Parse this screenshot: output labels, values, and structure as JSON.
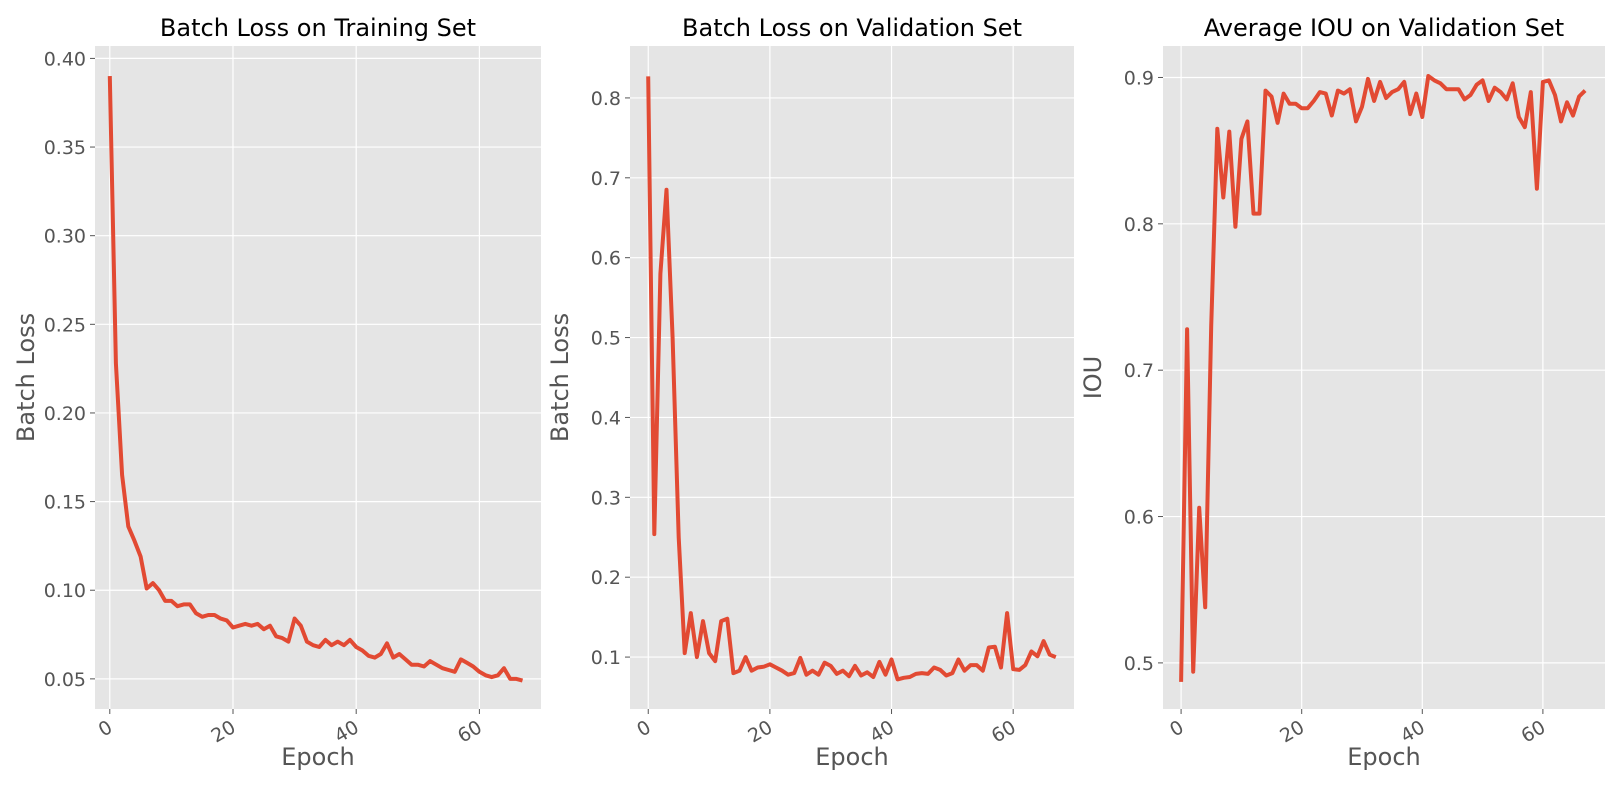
{
  "style": {
    "plot_background": "#e5e5e5",
    "grid_color": "#ffffff",
    "line_color": "#e24a33",
    "text_color": "#555555"
  },
  "chart_data": [
    {
      "type": "line",
      "title": "Batch Loss on Training Set",
      "xlabel": "Epoch",
      "ylabel": "Batch Loss",
      "xlim": [
        -2.4,
        70
      ],
      "ylim": [
        0.033,
        0.407
      ],
      "xticks": [
        0,
        20,
        40,
        60
      ],
      "yticks": [
        0.05,
        0.1,
        0.15,
        0.2,
        0.25,
        0.3,
        0.35,
        0.4
      ],
      "grid": true,
      "series": [
        {
          "x": [
            0,
            1,
            2,
            3,
            4,
            5,
            6,
            7,
            8,
            9,
            10,
            11,
            12,
            13,
            14,
            15,
            16,
            17,
            18,
            19,
            20,
            21,
            22,
            23,
            24,
            25,
            26,
            27,
            28,
            29,
            30,
            31,
            32,
            33,
            34,
            35,
            36,
            37,
            38,
            39,
            40,
            41,
            42,
            43,
            44,
            45,
            46,
            47,
            48,
            49,
            50,
            51,
            52,
            53,
            54,
            55,
            56,
            57,
            58,
            59,
            60,
            61,
            62,
            63,
            64,
            65,
            66,
            67
          ],
          "values": [
            0.39,
            0.228,
            0.165,
            0.136,
            0.128,
            0.119,
            0.101,
            0.104,
            0.1,
            0.094,
            0.094,
            0.091,
            0.092,
            0.092,
            0.087,
            0.085,
            0.086,
            0.086,
            0.084,
            0.083,
            0.079,
            0.08,
            0.081,
            0.08,
            0.081,
            0.078,
            0.08,
            0.074,
            0.073,
            0.071,
            0.084,
            0.08,
            0.071,
            0.069,
            0.068,
            0.072,
            0.069,
            0.071,
            0.069,
            0.072,
            0.068,
            0.066,
            0.063,
            0.062,
            0.064,
            0.07,
            0.062,
            0.064,
            0.061,
            0.058,
            0.058,
            0.057,
            0.06,
            0.058,
            0.056,
            0.055,
            0.054,
            0.061,
            0.059,
            0.057,
            0.054,
            0.052,
            0.051,
            0.052,
            0.056,
            0.05,
            0.05,
            0.049
          ]
        }
      ]
    },
    {
      "type": "line",
      "title": "Batch Loss on Validation Set",
      "xlabel": "Epoch",
      "ylabel": "Batch Loss",
      "xlim": [
        -3.0,
        70
      ],
      "ylim": [
        0.035,
        0.865
      ],
      "xticks": [
        0,
        20,
        40,
        60
      ],
      "yticks": [
        0.1,
        0.2,
        0.3,
        0.4,
        0.5,
        0.6,
        0.7,
        0.8
      ],
      "grid": true,
      "series": [
        {
          "x": [
            0,
            1,
            2,
            3,
            4,
            5,
            6,
            7,
            8,
            9,
            10,
            11,
            12,
            13,
            14,
            15,
            16,
            17,
            18,
            19,
            20,
            21,
            22,
            23,
            24,
            25,
            26,
            27,
            28,
            29,
            30,
            31,
            32,
            33,
            34,
            35,
            36,
            37,
            38,
            39,
            40,
            41,
            42,
            43,
            44,
            45,
            46,
            47,
            48,
            49,
            50,
            51,
            52,
            53,
            54,
            55,
            56,
            57,
            58,
            59,
            60,
            61,
            62,
            63,
            64,
            65,
            66,
            67
          ],
          "values": [
            0.827,
            0.254,
            0.58,
            0.685,
            0.5,
            0.25,
            0.105,
            0.155,
            0.1,
            0.145,
            0.105,
            0.095,
            0.145,
            0.148,
            0.08,
            0.083,
            0.1,
            0.083,
            0.087,
            0.088,
            0.091,
            0.087,
            0.083,
            0.078,
            0.08,
            0.099,
            0.078,
            0.083,
            0.078,
            0.093,
            0.089,
            0.079,
            0.083,
            0.076,
            0.089,
            0.077,
            0.081,
            0.075,
            0.094,
            0.078,
            0.097,
            0.072,
            0.074,
            0.075,
            0.079,
            0.08,
            0.079,
            0.087,
            0.084,
            0.077,
            0.08,
            0.097,
            0.083,
            0.09,
            0.09,
            0.083,
            0.112,
            0.113,
            0.087,
            0.155,
            0.085,
            0.084,
            0.09,
            0.107,
            0.101,
            0.12,
            0.103,
            0.1
          ]
        }
      ]
    },
    {
      "type": "line",
      "title": "Average IOU on Validation Set",
      "xlabel": "Epoch",
      "ylabel": "IOU",
      "xlim": [
        -3.0,
        70.3
      ],
      "ylim": [
        0.4685,
        0.9215
      ],
      "xticks": [
        0,
        20,
        40,
        60
      ],
      "yticks": [
        0.5,
        0.6,
        0.7,
        0.8,
        0.9
      ],
      "grid": true,
      "series": [
        {
          "x": [
            0,
            1,
            2,
            3,
            4,
            5,
            6,
            7,
            8,
            9,
            10,
            11,
            12,
            13,
            14,
            15,
            16,
            17,
            18,
            19,
            20,
            21,
            22,
            23,
            24,
            25,
            26,
            27,
            28,
            29,
            30,
            31,
            32,
            33,
            34,
            35,
            36,
            37,
            38,
            39,
            40,
            41,
            42,
            43,
            44,
            45,
            46,
            47,
            48,
            49,
            50,
            51,
            52,
            53,
            54,
            55,
            56,
            57,
            58,
            59,
            60,
            61,
            62,
            63,
            64,
            65,
            66,
            67
          ],
          "values": [
            0.487,
            0.728,
            0.494,
            0.606,
            0.538,
            0.73,
            0.865,
            0.818,
            0.863,
            0.798,
            0.858,
            0.87,
            0.807,
            0.807,
            0.891,
            0.887,
            0.869,
            0.889,
            0.882,
            0.882,
            0.879,
            0.879,
            0.884,
            0.89,
            0.889,
            0.874,
            0.891,
            0.889,
            0.892,
            0.87,
            0.88,
            0.899,
            0.884,
            0.897,
            0.886,
            0.89,
            0.892,
            0.897,
            0.875,
            0.889,
            0.873,
            0.901,
            0.898,
            0.896,
            0.892,
            0.892,
            0.892,
            0.885,
            0.888,
            0.895,
            0.898,
            0.884,
            0.893,
            0.89,
            0.885,
            0.896,
            0.873,
            0.866,
            0.89,
            0.824,
            0.897,
            0.898,
            0.888,
            0.87,
            0.883,
            0.874,
            0.887,
            0.891
          ]
        }
      ]
    }
  ]
}
